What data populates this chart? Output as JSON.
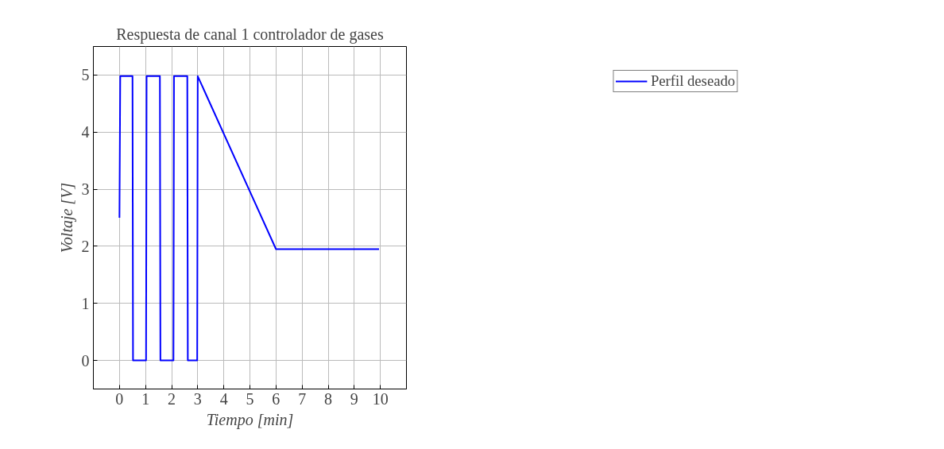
{
  "chart_data": {
    "type": "line",
    "title": "Respuesta de canal 1 controlador de gases",
    "xlabel": "Tiempo [min]",
    "ylabel": "Voltaje [V]",
    "x": [
      0,
      0.03,
      0.5,
      0.52,
      1.02,
      1.04,
      1.55,
      1.57,
      2.07,
      2.09,
      2.6,
      2.62,
      2.98,
      3.0,
      6.0,
      9.95
    ],
    "series": [
      {
        "name": "Perfil deseado",
        "color": "#0000ff",
        "values": [
          2.5,
          4.98,
          4.98,
          0,
          0,
          4.98,
          4.98,
          0,
          0,
          4.98,
          4.98,
          0,
          0,
          4.98,
          1.95,
          1.95
        ]
      }
    ],
    "xlim": [
      -1,
      11
    ],
    "ylim": [
      -0.5,
      5.5
    ],
    "xticks": [
      0,
      1,
      2,
      3,
      4,
      5,
      6,
      7,
      8,
      9,
      10
    ],
    "yticks": [
      0,
      1,
      2,
      3,
      4,
      5
    ],
    "grid": true,
    "legend": "top right",
    "line_style": "solid",
    "marker": "none"
  }
}
